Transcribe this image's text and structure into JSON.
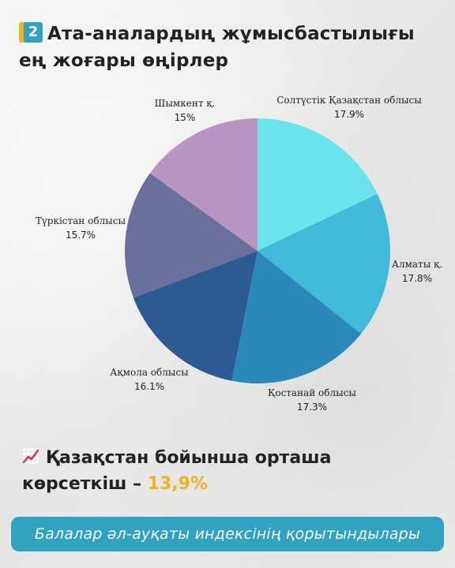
{
  "header": {
    "badge_number": "2",
    "title_line1": "Ата-аналардың жұмысбастылығы",
    "title_line2": "ең жоғары өңірлер"
  },
  "chart_data": {
    "type": "pie",
    "title": "Ата-аналардың жұмысбастылығы ең жоғары өңірлер",
    "slices": [
      {
        "label": "Солтүстік Қазақстан облысы",
        "value": 17.9,
        "display": "17.9%",
        "color": "#6ae4ea"
      },
      {
        "label": "Алматы қ.",
        "value": 17.8,
        "display": "17.8%",
        "color": "#41b9d8"
      },
      {
        "label": "Қостанай облысы",
        "value": 17.3,
        "display": "17.3%",
        "color": "#2a89ba"
      },
      {
        "label": "Ақмола облысы",
        "value": 16.1,
        "display": "16.1%",
        "color": "#2c5a93"
      },
      {
        "label": "Түркістан облысы",
        "value": 15.7,
        "display": "15.7%",
        "color": "#6a6f9b"
      },
      {
        "label": "Шымкент қ.",
        "value": 15,
        "display": "15%",
        "color": "#b995c3"
      }
    ]
  },
  "summary": {
    "icon": "chart-increasing-icon",
    "text_line1": "Қазақстан бойынша орташа",
    "text_line2": "көрсеткіш –",
    "value": "13,9%",
    "value_color": "#f0b323"
  },
  "footer": {
    "text": "Балалар әл-ауқаты индексінің қорытындылары",
    "background": "#2fa3bf"
  }
}
